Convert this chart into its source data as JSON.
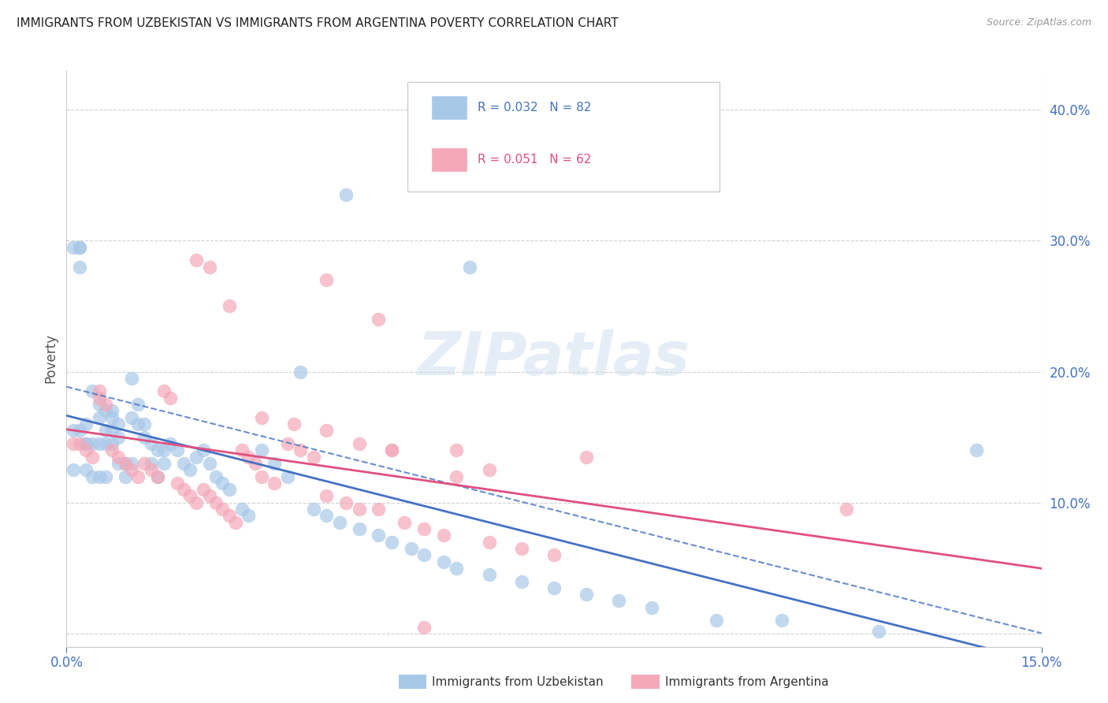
{
  "title": "IMMIGRANTS FROM UZBEKISTAN VS IMMIGRANTS FROM ARGENTINA POVERTY CORRELATION CHART",
  "source": "Source: ZipAtlas.com",
  "ylabel": "Poverty",
  "xlim": [
    0.0,
    0.15
  ],
  "ylim": [
    -0.01,
    0.43
  ],
  "yticks": [
    0.0,
    0.1,
    0.2,
    0.3,
    0.4
  ],
  "ytick_labels": [
    "",
    "10.0%",
    "20.0%",
    "30.0%",
    "40.0%"
  ],
  "xtick_labels": [
    "0.0%",
    "15.0%"
  ],
  "color_uzbekistan": "#a8c8e8",
  "color_argentina": "#f4a8b8",
  "line_color_uzbekistan": "#4472c4",
  "line_color_argentina": "#e05080",
  "legend_label1": "R = 0.032   N = 82",
  "legend_label2": "R = 0.051   N = 62",
  "bottom_label1": "Immigrants from Uzbekistan",
  "bottom_label2": "Immigrants from Argentina",
  "background_color": "#ffffff",
  "grid_color": "#cccccc",
  "title_color": "#222222",
  "axis_label_color": "#4472c4",
  "watermark": "ZIPatlas",
  "uzbekistan_x": [
    0.001,
    0.001,
    0.001,
    0.002,
    0.002,
    0.002,
    0.002,
    0.003,
    0.003,
    0.003,
    0.003,
    0.004,
    0.004,
    0.004,
    0.005,
    0.005,
    0.005,
    0.005,
    0.006,
    0.006,
    0.006,
    0.006,
    0.007,
    0.007,
    0.007,
    0.007,
    0.008,
    0.008,
    0.008,
    0.009,
    0.009,
    0.01,
    0.01,
    0.01,
    0.011,
    0.011,
    0.012,
    0.012,
    0.013,
    0.013,
    0.014,
    0.014,
    0.015,
    0.015,
    0.016,
    0.017,
    0.018,
    0.019,
    0.02,
    0.021,
    0.022,
    0.023,
    0.024,
    0.025,
    0.027,
    0.028,
    0.03,
    0.032,
    0.034,
    0.036,
    0.038,
    0.04,
    0.042,
    0.045,
    0.048,
    0.05,
    0.053,
    0.055,
    0.058,
    0.06,
    0.065,
    0.07,
    0.075,
    0.08,
    0.085,
    0.09,
    0.1,
    0.11,
    0.125,
    0.14,
    0.043,
    0.062
  ],
  "uzbekistan_y": [
    0.295,
    0.155,
    0.125,
    0.295,
    0.295,
    0.28,
    0.155,
    0.145,
    0.16,
    0.145,
    0.125,
    0.185,
    0.145,
    0.12,
    0.175,
    0.165,
    0.145,
    0.12,
    0.17,
    0.155,
    0.145,
    0.12,
    0.17,
    0.165,
    0.155,
    0.145,
    0.16,
    0.15,
    0.13,
    0.13,
    0.12,
    0.195,
    0.165,
    0.13,
    0.175,
    0.16,
    0.16,
    0.15,
    0.145,
    0.13,
    0.14,
    0.12,
    0.14,
    0.13,
    0.145,
    0.14,
    0.13,
    0.125,
    0.135,
    0.14,
    0.13,
    0.12,
    0.115,
    0.11,
    0.095,
    0.09,
    0.14,
    0.13,
    0.12,
    0.2,
    0.095,
    0.09,
    0.085,
    0.08,
    0.075,
    0.07,
    0.065,
    0.06,
    0.055,
    0.05,
    0.045,
    0.04,
    0.035,
    0.03,
    0.025,
    0.02,
    0.01,
    0.01,
    0.002,
    0.14,
    0.335,
    0.28
  ],
  "argentina_x": [
    0.001,
    0.002,
    0.003,
    0.004,
    0.005,
    0.005,
    0.006,
    0.007,
    0.008,
    0.009,
    0.01,
    0.011,
    0.012,
    0.013,
    0.014,
    0.015,
    0.016,
    0.017,
    0.018,
    0.019,
    0.02,
    0.021,
    0.022,
    0.023,
    0.024,
    0.025,
    0.026,
    0.027,
    0.028,
    0.029,
    0.03,
    0.032,
    0.034,
    0.036,
    0.038,
    0.04,
    0.043,
    0.045,
    0.048,
    0.05,
    0.052,
    0.055,
    0.058,
    0.06,
    0.065,
    0.07,
    0.075,
    0.02,
    0.022,
    0.025,
    0.03,
    0.035,
    0.04,
    0.045,
    0.05,
    0.048,
    0.12,
    0.055,
    0.065,
    0.08,
    0.04,
    0.06
  ],
  "argentina_y": [
    0.145,
    0.145,
    0.14,
    0.135,
    0.185,
    0.18,
    0.175,
    0.14,
    0.135,
    0.13,
    0.125,
    0.12,
    0.13,
    0.125,
    0.12,
    0.185,
    0.18,
    0.115,
    0.11,
    0.105,
    0.1,
    0.11,
    0.105,
    0.1,
    0.095,
    0.09,
    0.085,
    0.14,
    0.135,
    0.13,
    0.12,
    0.115,
    0.145,
    0.14,
    0.135,
    0.105,
    0.1,
    0.095,
    0.095,
    0.14,
    0.085,
    0.08,
    0.075,
    0.14,
    0.07,
    0.065,
    0.06,
    0.285,
    0.28,
    0.25,
    0.165,
    0.16,
    0.155,
    0.145,
    0.14,
    0.24,
    0.095,
    0.005,
    0.125,
    0.135,
    0.27,
    0.12
  ]
}
